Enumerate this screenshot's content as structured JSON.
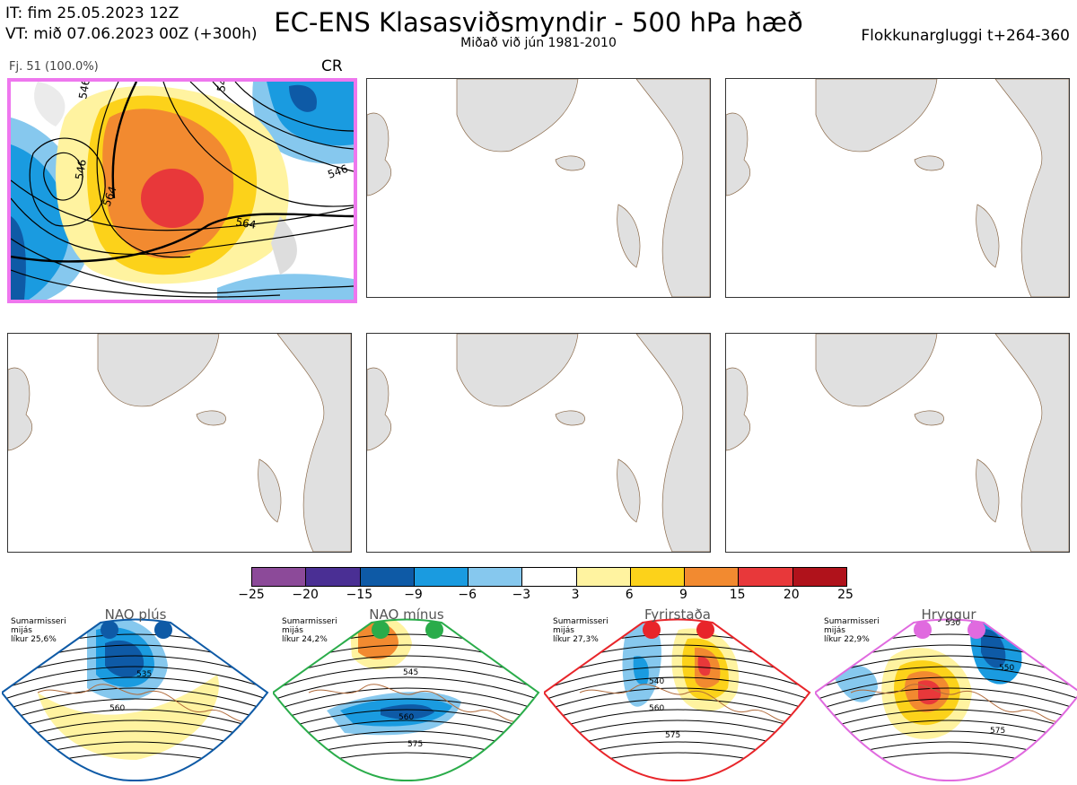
{
  "header": {
    "init_time": "IT: fim 25.05.2023 12Z",
    "valid_time": "VT: mið 07.06.2023 00Z  (+300h)",
    "title": "EC-ENS Klasasviðsmyndir - 500 hPa hæð",
    "subtitle": "Miðað við jún 1981-2010",
    "window": "Flokkunargluggi t+264-360"
  },
  "cluster_panel": {
    "label": "Fj. 51 (100.0%)",
    "regime": "CR",
    "contours": [
      "546",
      "564",
      "564",
      "546",
      "546",
      "546"
    ],
    "border_color": "#ee77ee"
  },
  "colorbar": {
    "colors": [
      "#8c4a99",
      "#4a2f94",
      "#0e5aa6",
      "#1a9be0",
      "#86c8ee",
      "#ffffff",
      "#fff3a0",
      "#fcd21a",
      "#f28a30",
      "#e8383a",
      "#b0121b"
    ],
    "ticks": [
      "−25",
      "−20",
      "−15",
      "−9",
      "−6",
      "−3",
      "3",
      "6",
      "9",
      "15",
      "20",
      "25"
    ]
  },
  "regimes": [
    {
      "name": "NAO plús",
      "season": "Sumarmisseri",
      "period": "mijás",
      "prob": "líkur 25,6%",
      "color": "#0e5aa6",
      "contours": [
        "535",
        "560"
      ]
    },
    {
      "name": "NAO mínus",
      "season": "Sumarmisseri",
      "period": "mijás",
      "prob": "líkur 24,2%",
      "color": "#2aac4a",
      "contours": [
        "545",
        "560",
        "575"
      ]
    },
    {
      "name": "Fyrirstaða",
      "season": "Sumarmisseri",
      "period": "mijás",
      "prob": "líkur 27,3%",
      "color": "#e8252a",
      "contours": [
        "540",
        "560",
        "575"
      ]
    },
    {
      "name": "Hryggur",
      "season": "Sumarmisseri",
      "period": "mijás",
      "prob": "líkur 22,9%",
      "color": "#e06adf",
      "contours": [
        "530",
        "550",
        "575"
      ]
    }
  ]
}
